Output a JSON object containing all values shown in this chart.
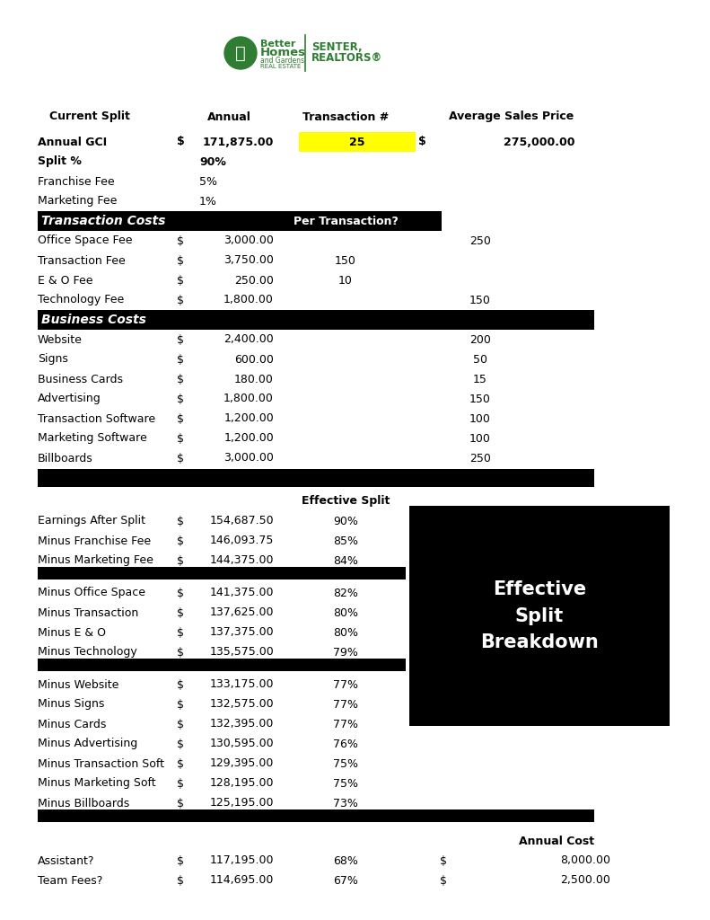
{
  "bg_color": "#ffffff",
  "black": "#000000",
  "white": "#ffffff",
  "yellow": "#ffff00",
  "green": "#2e7d32",
  "section1_rows": [
    {
      "label": "Office Space Fee",
      "dollar": "$",
      "annual": "3,000.00",
      "per_trans": "",
      "per_month": "250"
    },
    {
      "label": "Transaction Fee",
      "dollar": "$",
      "annual": "3,750.00",
      "per_trans": "150",
      "per_month": ""
    },
    {
      "label": "E & O Fee",
      "dollar": "$",
      "annual": "250.00",
      "per_trans": "10",
      "per_month": ""
    },
    {
      "label": "Technology Fee",
      "dollar": "$",
      "annual": "1,800.00",
      "per_trans": "",
      "per_month": "150"
    }
  ],
  "section2_rows": [
    {
      "label": "Website",
      "dollar": "$",
      "annual": "2,400.00",
      "per_month": "200"
    },
    {
      "label": "Signs",
      "dollar": "$",
      "annual": "600.00",
      "per_month": "50"
    },
    {
      "label": "Business Cards",
      "dollar": "$",
      "annual": "180.00",
      "per_month": "15"
    },
    {
      "label": "Advertising",
      "dollar": "$",
      "annual": "1,800.00",
      "per_month": "150"
    },
    {
      "label": "Transaction Software",
      "dollar": "$",
      "annual": "1,200.00",
      "per_month": "100"
    },
    {
      "label": "Marketing Software",
      "dollar": "$",
      "annual": "1,200.00",
      "per_month": "100"
    },
    {
      "label": "Billboards",
      "dollar": "$",
      "annual": "3,000.00",
      "per_month": "250"
    }
  ],
  "effective_rows_group1": [
    {
      "label": "Earnings After Split",
      "dollar": "$",
      "annual": "154,687.50",
      "split": "90%"
    },
    {
      "label": "Minus Franchise Fee",
      "dollar": "$",
      "annual": "146,093.75",
      "split": "85%"
    },
    {
      "label": "Minus Marketing Fee",
      "dollar": "$",
      "annual": "144,375.00",
      "split": "84%"
    }
  ],
  "effective_rows_group2": [
    {
      "label": "Minus Office Space",
      "dollar": "$",
      "annual": "141,375.00",
      "split": "82%"
    },
    {
      "label": "Minus Transaction",
      "dollar": "$",
      "annual": "137,625.00",
      "split": "80%"
    },
    {
      "label": "Minus E & O",
      "dollar": "$",
      "annual": "137,375.00",
      "split": "80%"
    },
    {
      "label": "Minus Technology",
      "dollar": "$",
      "annual": "135,575.00",
      "split": "79%"
    }
  ],
  "effective_rows_group3": [
    {
      "label": "Minus Website",
      "dollar": "$",
      "annual": "133,175.00",
      "split": "77%"
    },
    {
      "label": "Minus Signs",
      "dollar": "$",
      "annual": "132,575.00",
      "split": "77%"
    },
    {
      "label": "Minus Cards",
      "dollar": "$",
      "annual": "132,395.00",
      "split": "77%"
    },
    {
      "label": "Minus Advertising",
      "dollar": "$",
      "annual": "130,595.00",
      "split": "76%"
    },
    {
      "label": "Minus Transaction Soft",
      "dollar": "$",
      "annual": "129,395.00",
      "split": "75%"
    },
    {
      "label": "Minus Marketing Soft",
      "dollar": "$",
      "annual": "128,195.00",
      "split": "75%"
    },
    {
      "label": "Minus Billboards",
      "dollar": "$",
      "annual": "125,195.00",
      "split": "73%"
    }
  ],
  "final_rows": [
    {
      "label": "Assistant?",
      "dollar": "$",
      "annual": "117,195.00",
      "split": "68%",
      "dollar2": "$",
      "cost": "8,000.00"
    },
    {
      "label": "Team Fees?",
      "dollar": "$",
      "annual": "114,695.00",
      "split": "67%",
      "dollar2": "$",
      "cost": "2,500.00"
    }
  ]
}
